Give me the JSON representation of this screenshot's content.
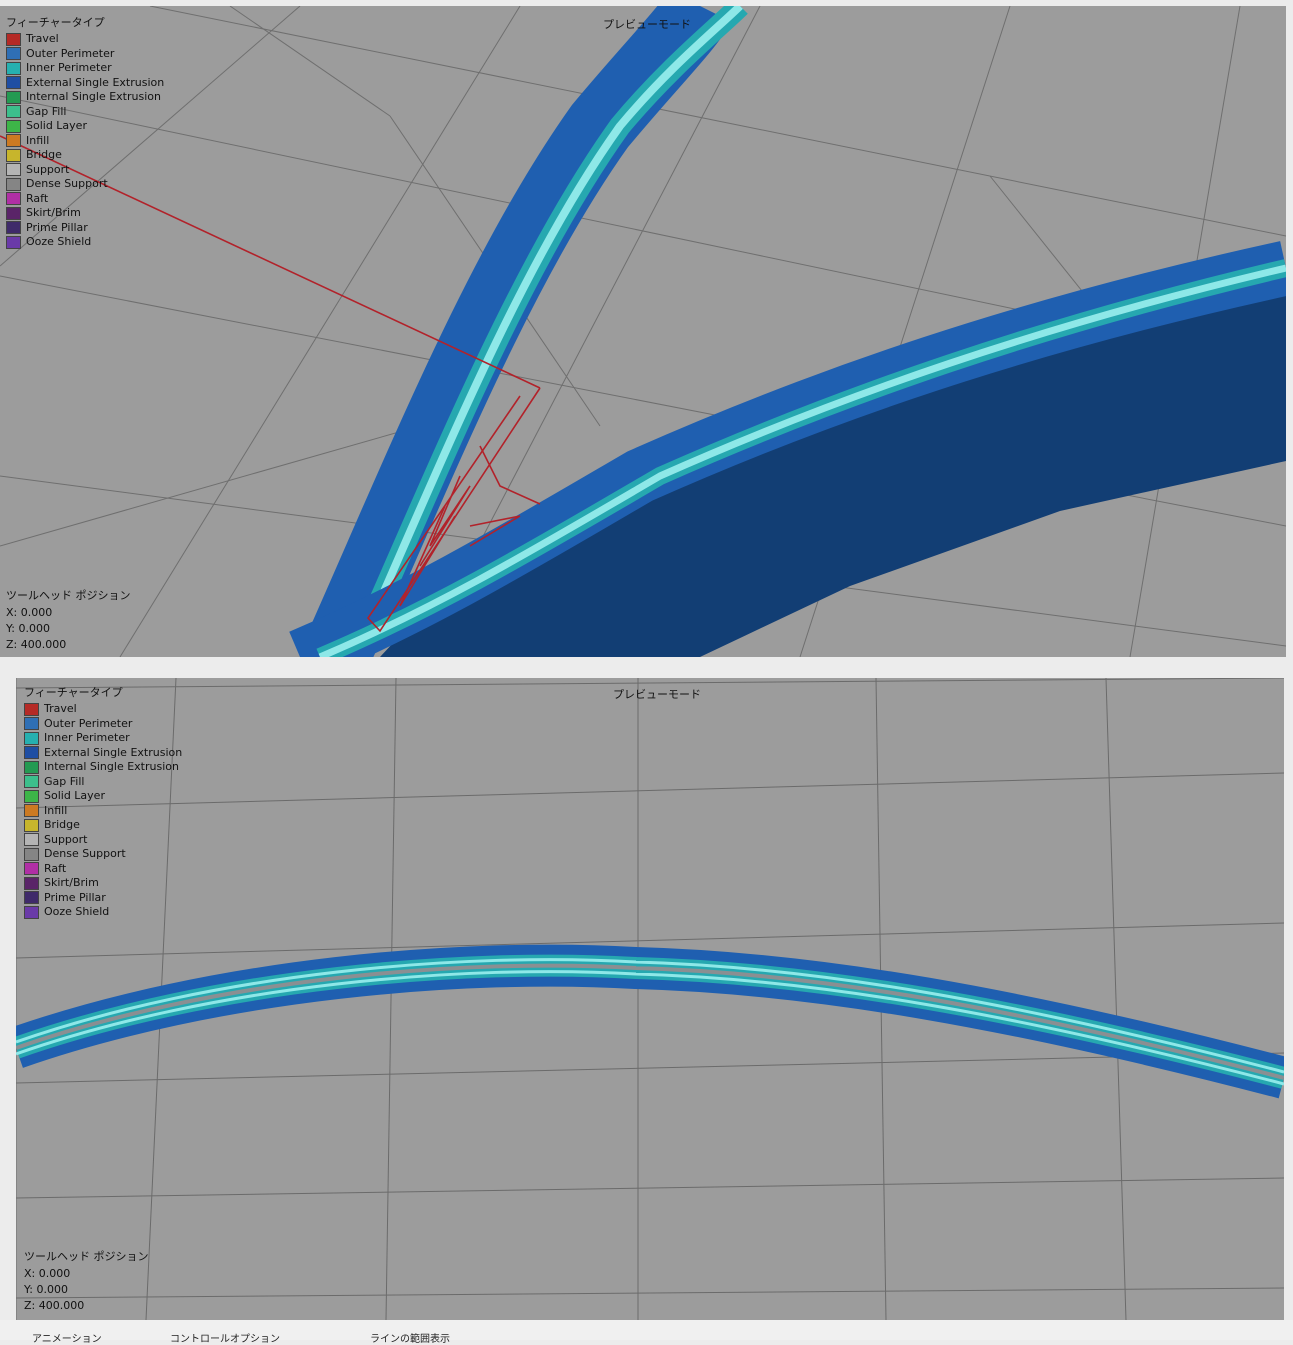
{
  "legend": {
    "title": "フィーチャータイプ",
    "items": [
      {
        "label": "Travel",
        "color": "#b52a26"
      },
      {
        "label": "Outer Perimeter",
        "color": "#2f6fb5"
      },
      {
        "label": "Inner Perimeter",
        "color": "#26b0b0"
      },
      {
        "label": "External Single Extrusion",
        "color": "#1f4ea3"
      },
      {
        "label": "Internal Single Extrusion",
        "color": "#249a52"
      },
      {
        "label": "Gap Fill",
        "color": "#3cbf8c"
      },
      {
        "label": "Solid Layer",
        "color": "#3db548"
      },
      {
        "label": "Infill",
        "color": "#cc7a22"
      },
      {
        "label": "Bridge",
        "color": "#c7b52c"
      },
      {
        "label": "Support",
        "color": "#b4b4b4"
      },
      {
        "label": "Dense Support",
        "color": "#858585"
      },
      {
        "label": "Raft",
        "color": "#b02fa5"
      },
      {
        "label": "Skirt/Brim",
        "color": "#5a2468"
      },
      {
        "label": "Prime Pillar",
        "color": "#3f2a6a"
      },
      {
        "label": "Ooze Shield",
        "color": "#6a3aa8"
      }
    ]
  },
  "preview_mode_label": "プレビューモード",
  "toolhead": {
    "title": "ツールヘッド ポジション",
    "x": "X: 0.000",
    "y": "Y: 0.000",
    "z": "Z: 400.000"
  },
  "bottom_tabs": {
    "animation": "アニメーション",
    "control_options": "コントロールオプション",
    "line_range": "ラインの範囲表示"
  },
  "colors": {
    "viewport_bg": "#9c9c9c",
    "grid": "#6e6e6e",
    "outer_perimeter": "#1f5fb0",
    "inner_perimeter": "#6fd8d8",
    "wall_side": "#123e74",
    "travel": "#c0262a"
  }
}
